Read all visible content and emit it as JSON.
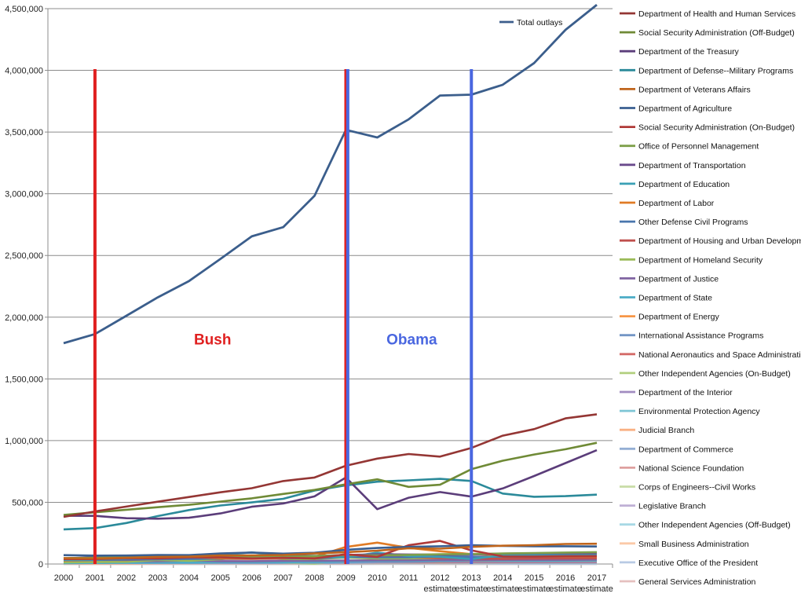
{
  "chart_data": {
    "type": "line",
    "title": "",
    "xlabel": "",
    "ylabel": "",
    "ylim": [
      0,
      4500000
    ],
    "y_ticks": [
      "0",
      "500,000",
      "1,000,000",
      "1,500,000",
      "2,000,000",
      "2,500,000",
      "3,000,000",
      "3,500,000",
      "4,000,000",
      "4,500,000"
    ],
    "y_tick_values": [
      0,
      500000,
      1000000,
      1500000,
      2000000,
      2500000,
      3000000,
      3500000,
      4000000,
      4500000
    ],
    "grid": "horizontal",
    "categories": [
      "2000",
      "2001",
      "2002",
      "2003",
      "2004",
      "2005",
      "2006",
      "2007",
      "2008",
      "2009",
      "2010",
      "2011",
      "2012 estimate",
      "2013 estimate",
      "2014 estimate",
      "2015 estimate",
      "2016 estimate",
      "2017 estimate"
    ],
    "category_lines": [
      [
        "2000"
      ],
      [
        "2001"
      ],
      [
        "2002"
      ],
      [
        "2003"
      ],
      [
        "2004"
      ],
      [
        "2005"
      ],
      [
        "2006"
      ],
      [
        "2007"
      ],
      [
        "2008"
      ],
      [
        "2009"
      ],
      [
        "2010"
      ],
      [
        "2011"
      ],
      [
        "2012",
        "estimate"
      ],
      [
        "2013",
        "estimate"
      ],
      [
        "2014",
        "estimate"
      ],
      [
        "2015",
        "estimate"
      ],
      [
        "2016",
        "estimate"
      ],
      [
        "2017",
        "estimate"
      ]
    ],
    "total_series": {
      "name": "Total outlays",
      "color": "#3b5e8c",
      "values": [
        1789000,
        1863000,
        2011000,
        2160000,
        2293000,
        2472000,
        2655000,
        2729000,
        2983000,
        3518000,
        3456000,
        3603000,
        3796000,
        3803000,
        3883000,
        4059000,
        4328000,
        4531000
      ]
    },
    "total_legend_position": "top-right inside plot",
    "legend_position": "right",
    "series": [
      {
        "name": "Department of Health and Human Services",
        "color": "#943634",
        "values": [
          382000,
          426000,
          465000,
          505000,
          543000,
          581000,
          614000,
          672000,
          701000,
          796000,
          854000,
          891000,
          870000,
          941000,
          1040000,
          1093000,
          1180000,
          1213000
        ]
      },
      {
        "name": "Social Security Administration  (Off-Budget)",
        "color": "#6f8a36",
        "values": [
          398000,
          419000,
          440000,
          460000,
          480000,
          506000,
          532000,
          568000,
          600000,
          646000,
          686000,
          625000,
          642000,
          768000,
          837000,
          887000,
          930000,
          982000
        ]
      },
      {
        "name": "Department of the Treasury",
        "color": "#5b3d7a",
        "values": [
          391000,
          390000,
          371000,
          367000,
          375000,
          410000,
          464000,
          490000,
          548000,
          701000,
          444000,
          537000,
          583000,
          546000,
          612000,
          713000,
          818000,
          922000
        ]
      },
      {
        "name": "Department of Defense--Military Programs",
        "color": "#2b8a9a",
        "values": [
          281000,
          291000,
          332000,
          388000,
          437000,
          474000,
          499000,
          528000,
          595000,
          637000,
          667000,
          678000,
          690000,
          673000,
          571000,
          545000,
          550000,
          562000
        ]
      },
      {
        "name": "Department of Veterans Affairs",
        "color": "#c0651c",
        "values": [
          47000,
          45000,
          51000,
          57000,
          60000,
          70000,
          70000,
          73000,
          85000,
          96000,
          108000,
          127000,
          124000,
          139000,
          148000,
          153000,
          162000,
          164000
        ]
      },
      {
        "name": "Department of Agriculture",
        "color": "#3a5f91",
        "values": [
          72000,
          68000,
          69000,
          73000,
          72000,
          85000,
          93000,
          84000,
          91000,
          115000,
          130000,
          139000,
          144000,
          152000,
          147000,
          144000,
          144000,
          142000
        ]
      },
      {
        "name": "Social Security Administration  (On-Budget)",
        "color": "#b03a38",
        "values": [
          40000,
          40000,
          48000,
          46000,
          54000,
          54000,
          45000,
          51000,
          45000,
          79000,
          58000,
          152000,
          187000,
          111000,
          61000,
          60000,
          63000,
          64000
        ]
      },
      {
        "name": "Office of Personnel Management",
        "color": "#7ea04a",
        "values": [
          48000,
          51000,
          54000,
          57000,
          60000,
          62000,
          63000,
          58000,
          64000,
          72000,
          70000,
          74000,
          79000,
          81000,
          85000,
          89000,
          93000,
          96000
        ]
      },
      {
        "name": "Department of Transportation",
        "color": "#6a4a8c",
        "values": [
          46000,
          55000,
          61000,
          51000,
          55000,
          56000,
          61000,
          66000,
          65000,
          73000,
          78000,
          77000,
          76000,
          76000,
          84000,
          87000,
          87000,
          88000
        ]
      },
      {
        "name": "Department of Education",
        "color": "#3aa0b5",
        "values": [
          34000,
          36000,
          47000,
          57000,
          63000,
          73000,
          94000,
          67000,
          66000,
          53000,
          93000,
          65000,
          58000,
          40000,
          71000,
          73000,
          76000,
          77000
        ]
      },
      {
        "name": "Department of Labor",
        "color": "#e07b25",
        "values": [
          31000,
          39000,
          65000,
          70000,
          57000,
          47000,
          43000,
          48000,
          59000,
          138000,
          173000,
          131000,
          104000,
          80000,
          70000,
          63000,
          62000,
          61000
        ]
      },
      {
        "name": "Other Defense Civil Programs",
        "color": "#4a76ad",
        "values": [
          32000,
          34000,
          35000,
          39000,
          41000,
          44000,
          45000,
          47000,
          46000,
          57000,
          54000,
          54000,
          63000,
          58000,
          60000,
          62000,
          64000,
          66000
        ]
      },
      {
        "name": "Department of Housing and Urban Development",
        "color": "#c0504d",
        "values": [
          30000,
          34000,
          32000,
          38000,
          45000,
          42000,
          42000,
          45000,
          49000,
          61000,
          60000,
          57000,
          48000,
          43000,
          42000,
          44000,
          45000,
          46000
        ]
      },
      {
        "name": "Department of Homeland Security",
        "color": "#9bbb59",
        "values": [
          13000,
          16000,
          18000,
          32000,
          27000,
          39000,
          69000,
          40000,
          41000,
          52000,
          45000,
          46000,
          48000,
          56000,
          48000,
          47000,
          48000,
          48000
        ]
      },
      {
        "name": "Department of Justice",
        "color": "#8064a2",
        "values": [
          17000,
          19000,
          22000,
          22000,
          29000,
          23000,
          23000,
          26000,
          27000,
          28000,
          30000,
          30000,
          32000,
          31000,
          34000,
          34000,
          34000,
          35000
        ]
      },
      {
        "name": "Department of State",
        "color": "#4bacc6",
        "values": [
          7000,
          8000,
          10000,
          11000,
          11000,
          13000,
          13000,
          14000,
          18000,
          22000,
          24000,
          24000,
          27000,
          29000,
          29000,
          28000,
          28000,
          29000
        ]
      },
      {
        "name": "Department of Energy",
        "color": "#f79646",
        "values": [
          15000,
          16000,
          17000,
          19000,
          20000,
          22000,
          20000,
          20000,
          21000,
          24000,
          31000,
          32000,
          33000,
          27000,
          29000,
          29000,
          28000,
          28000
        ]
      },
      {
        "name": "International Assistance Programs",
        "color": "#7396c5",
        "values": [
          12000,
          12000,
          13000,
          14000,
          14000,
          15000,
          13000,
          13000,
          11000,
          14000,
          20000,
          20000,
          22000,
          23000,
          23000,
          22000,
          22000,
          22000
        ]
      },
      {
        "name": "National Aeronautics and Space Administration",
        "color": "#d46a68",
        "values": [
          13000,
          14000,
          15000,
          15000,
          15000,
          16000,
          15000,
          16000,
          17000,
          19000,
          19000,
          17000,
          18000,
          18000,
          18000,
          18000,
          18000,
          18000
        ]
      },
      {
        "name": "Other Independent Agencies (On-Budget)",
        "color": "#b2cf7e",
        "values": [
          10000,
          9000,
          12000,
          14000,
          12000,
          14000,
          20000,
          12000,
          2000,
          28000,
          22000,
          20000,
          16000,
          19000,
          21000,
          22000,
          23000,
          23000
        ]
      },
      {
        "name": "Department of the Interior",
        "color": "#a18cc0",
        "values": [
          8000,
          8000,
          10000,
          9000,
          9000,
          9000,
          9000,
          10000,
          10000,
          12000,
          13000,
          13000,
          12000,
          14000,
          13000,
          13000,
          13000,
          13000
        ]
      },
      {
        "name": "Environmental Protection Agency",
        "color": "#7fc6d6",
        "values": [
          7000,
          8000,
          8000,
          8000,
          8000,
          8000,
          8000,
          8000,
          8000,
          9000,
          11000,
          11000,
          11000,
          10000,
          10000,
          9000,
          9000,
          9000
        ]
      },
      {
        "name": "Judicial Branch",
        "color": "#f9b183",
        "values": [
          4000,
          4000,
          5000,
          5000,
          6000,
          6000,
          6000,
          6000,
          6000,
          7000,
          7000,
          7000,
          7000,
          7000,
          8000,
          8000,
          8000,
          8000
        ]
      },
      {
        "name": "Department of Commerce",
        "color": "#93aed4",
        "values": [
          8000,
          5000,
          5000,
          6000,
          6000,
          6000,
          6000,
          6000,
          7000,
          10000,
          13000,
          10000,
          10000,
          9000,
          10000,
          10000,
          10000,
          10000
        ]
      },
      {
        "name": "National Science Foundation",
        "color": "#dea09f",
        "values": [
          3000,
          4000,
          4000,
          5000,
          5000,
          6000,
          6000,
          6000,
          6000,
          6000,
          7000,
          8000,
          8000,
          8000,
          8000,
          8000,
          8000,
          8000
        ]
      },
      {
        "name": "Corps of Engineers--Civil Works",
        "color": "#c8dca6",
        "values": [
          4000,
          5000,
          5000,
          5000,
          5000,
          5000,
          7000,
          7000,
          6000,
          7000,
          10000,
          10000,
          8000,
          9000,
          8000,
          8000,
          8000,
          8000
        ]
      },
      {
        "name": "Legislative Branch",
        "color": "#bfb0d5",
        "values": [
          3000,
          3000,
          3000,
          4000,
          4000,
          4000,
          4000,
          4000,
          4000,
          4000,
          5000,
          5000,
          5000,
          5000,
          5000,
          5000,
          5000,
          5000
        ]
      },
      {
        "name": "Other Independent Agencies (Off-Budget)",
        "color": "#a8d8e5",
        "values": [
          2000,
          2000,
          3000,
          2000,
          1000,
          1000,
          1000,
          1000,
          1000,
          1000,
          2000,
          2000,
          2000,
          2000,
          2000,
          2000,
          2000,
          2000
        ]
      },
      {
        "name": "Small Business Administration",
        "color": "#fbc9a8",
        "values": [
          1000,
          1000,
          1000,
          2000,
          4000,
          2000,
          1000,
          1000,
          1000,
          2000,
          7000,
          6000,
          1000,
          1000,
          1000,
          1000,
          1000,
          1000
        ]
      },
      {
        "name": "Executive Office of the President",
        "color": "#b8cae4",
        "values": [
          300,
          300,
          400,
          400,
          400,
          400,
          300,
          300,
          300,
          700,
          600,
          600,
          400,
          400,
          400,
          400,
          400,
          400
        ]
      },
      {
        "name": "General Services Administration",
        "color": "#e5c0bf",
        "values": [
          0,
          0,
          0,
          0,
          0,
          0,
          0,
          0,
          300,
          700,
          1000,
          1000,
          300,
          300,
          300,
          300,
          300,
          300
        ]
      }
    ],
    "annotations": [
      {
        "text": "Bush",
        "color": "#e02020",
        "category_index": 4.75,
        "y": 1780000
      },
      {
        "text": "Obama",
        "color": "#4a67e0",
        "category_index": 11.1,
        "y": 1780000
      }
    ],
    "vertical_markers": [
      {
        "category": "2001",
        "category_index": 1,
        "color": "#e02020",
        "y_top": 4010000
      },
      {
        "category": "2009",
        "category_index": 9,
        "color": "#e02020",
        "y_top": 4010000
      },
      {
        "category": "2009",
        "category_index": 9.06,
        "color": "#4a67e0",
        "y_top": 4010000
      },
      {
        "category": "2013 estimate",
        "category_index": 13,
        "color": "#4a67e0",
        "y_top": 4010000
      }
    ]
  }
}
